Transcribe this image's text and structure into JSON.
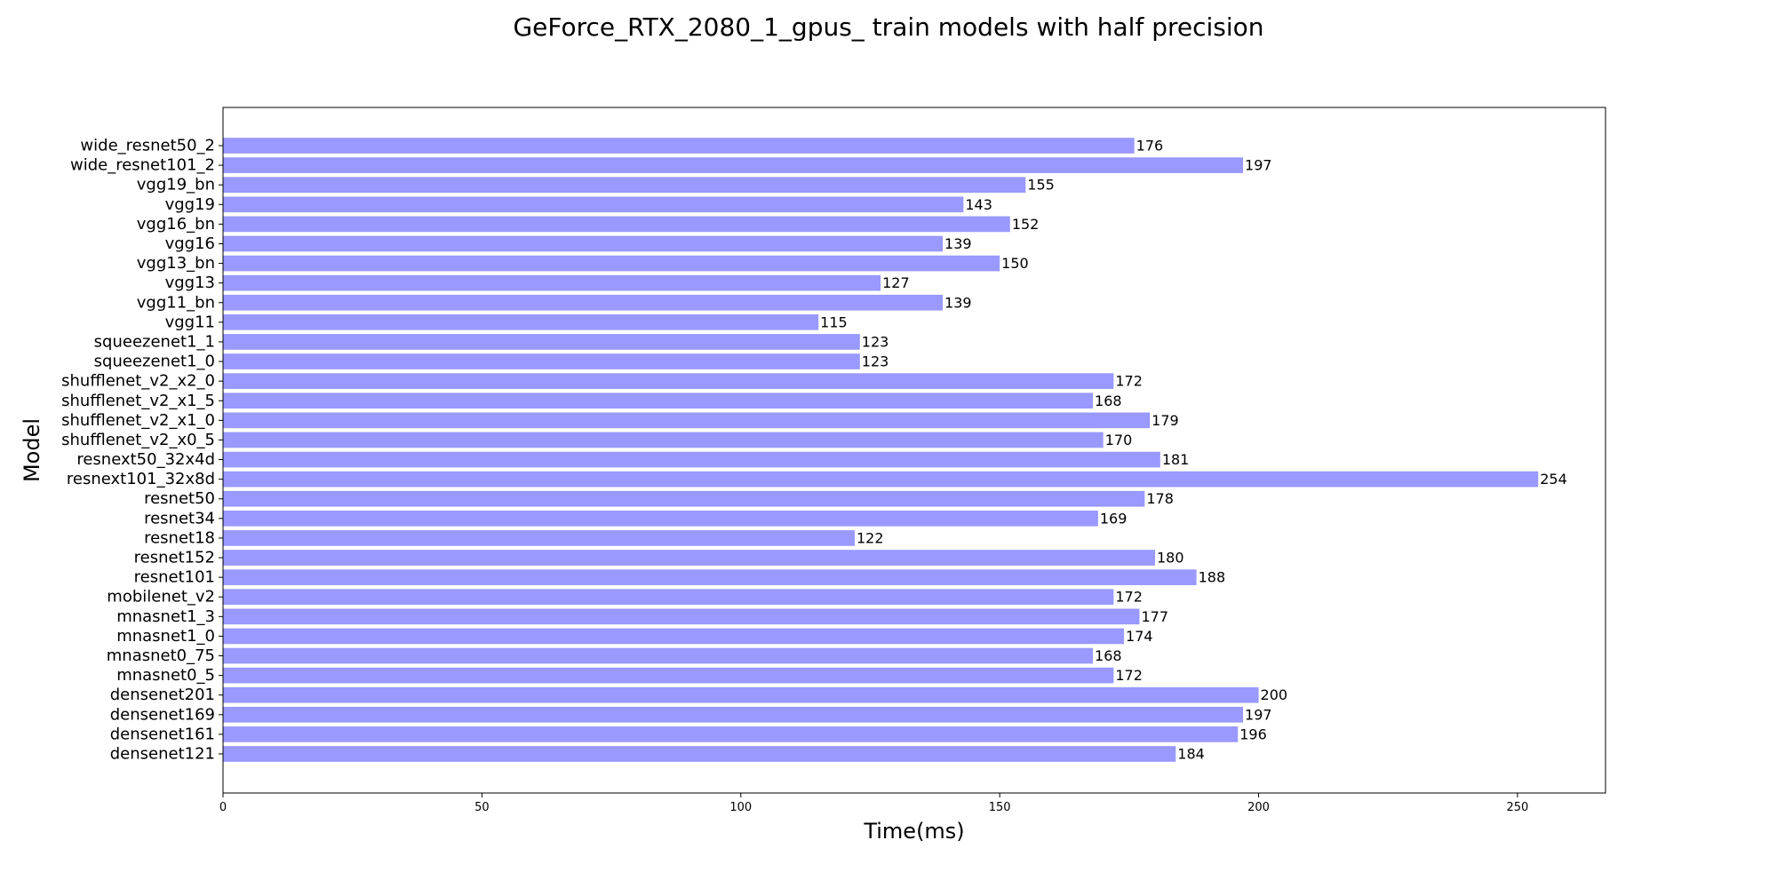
{
  "chart_data": {
    "type": "bar",
    "orientation": "horizontal",
    "title": "GeForce_RTX_2080_1_gpus_ train models with half precision",
    "xlabel": "Time(ms)",
    "ylabel": "Model",
    "xlim": [
      0,
      267
    ],
    "xticks": [
      0,
      50,
      100,
      150,
      200,
      250
    ],
    "grid": false,
    "bar_color": "#9999ff",
    "categories": [
      "densenet121",
      "densenet161",
      "densenet169",
      "densenet201",
      "mnasnet0_5",
      "mnasnet0_75",
      "mnasnet1_0",
      "mnasnet1_3",
      "mobilenet_v2",
      "resnet101",
      "resnet152",
      "resnet18",
      "resnet34",
      "resnet50",
      "resnext101_32x8d",
      "resnext50_32x4d",
      "shufflenet_v2_x0_5",
      "shufflenet_v2_x1_0",
      "shufflenet_v2_x1_5",
      "shufflenet_v2_x2_0",
      "squeezenet1_0",
      "squeezenet1_1",
      "vgg11",
      "vgg11_bn",
      "vgg13",
      "vgg13_bn",
      "vgg16",
      "vgg16_bn",
      "vgg19",
      "vgg19_bn",
      "wide_resnet101_2",
      "wide_resnet50_2"
    ],
    "values": [
      184,
      196,
      197,
      200,
      172,
      168,
      174,
      177,
      172,
      188,
      180,
      122,
      169,
      178,
      254,
      181,
      170,
      179,
      168,
      172,
      123,
      123,
      115,
      139,
      127,
      150,
      139,
      152,
      143,
      155,
      197,
      176
    ],
    "value_labels": [
      "184",
      "196",
      "197",
      "200",
      "172",
      "168",
      "174",
      "177",
      "172",
      "188",
      "180",
      "122",
      "169",
      "178",
      "254",
      "181",
      "170",
      "179",
      "168",
      "172",
      "123",
      "123",
      "115",
      "139",
      "127",
      "150",
      "139",
      "152",
      "143",
      "155",
      "197",
      "176"
    ]
  }
}
